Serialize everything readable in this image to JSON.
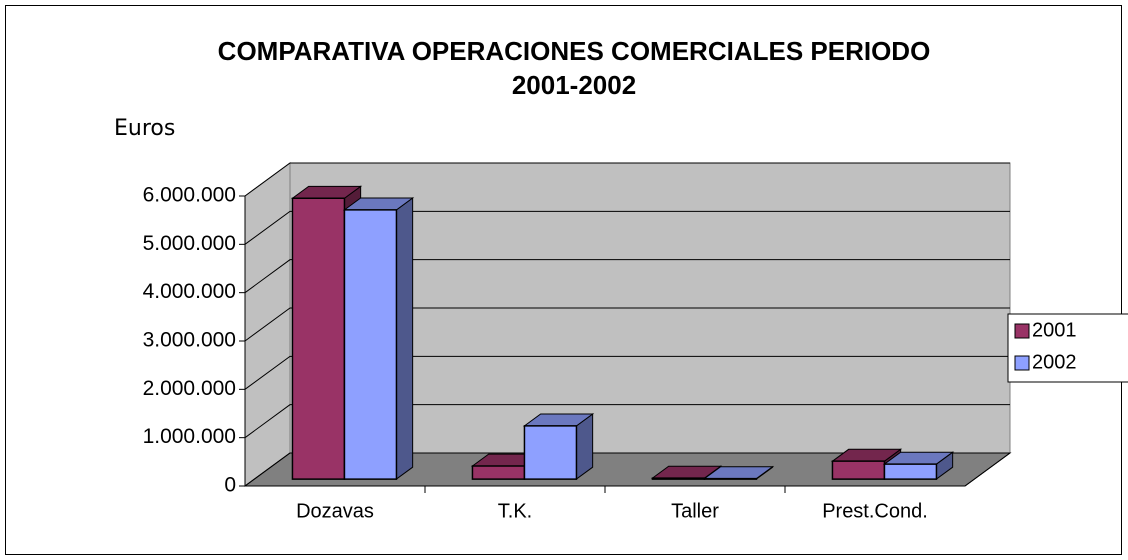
{
  "chart_data": {
    "type": "bar3d",
    "title": "COMPARATIVA OPERACIONES COMERCIALES PERIODO 2001-2002",
    "y_axis_label": "Euros",
    "categories": [
      "Dozavas",
      "T.K.",
      "Taller",
      "Prest.Cond."
    ],
    "series": [
      {
        "name": "2001",
        "color": "#993366",
        "values": [
          5810000,
          270000,
          20000,
          370000
        ]
      },
      {
        "name": "2002",
        "color": "#8ea0ff",
        "values": [
          5570000,
          1100000,
          10000,
          310000
        ]
      }
    ],
    "ylim": [
      0,
      6000000
    ],
    "yticks": [
      0,
      {
        "value": 1000000,
        "label": "1.000.000"
      },
      {
        "value": 2000000,
        "label": "2.000.000"
      },
      {
        "value": 3000000,
        "label": "3.000.000"
      },
      {
        "value": 4000000,
        "label": "4.000.000"
      },
      {
        "value": 5000000,
        "label": "5.000.000"
      },
      {
        "value": 6000000,
        "label": "6.000.000"
      }
    ],
    "grid": true,
    "legend": "right"
  }
}
